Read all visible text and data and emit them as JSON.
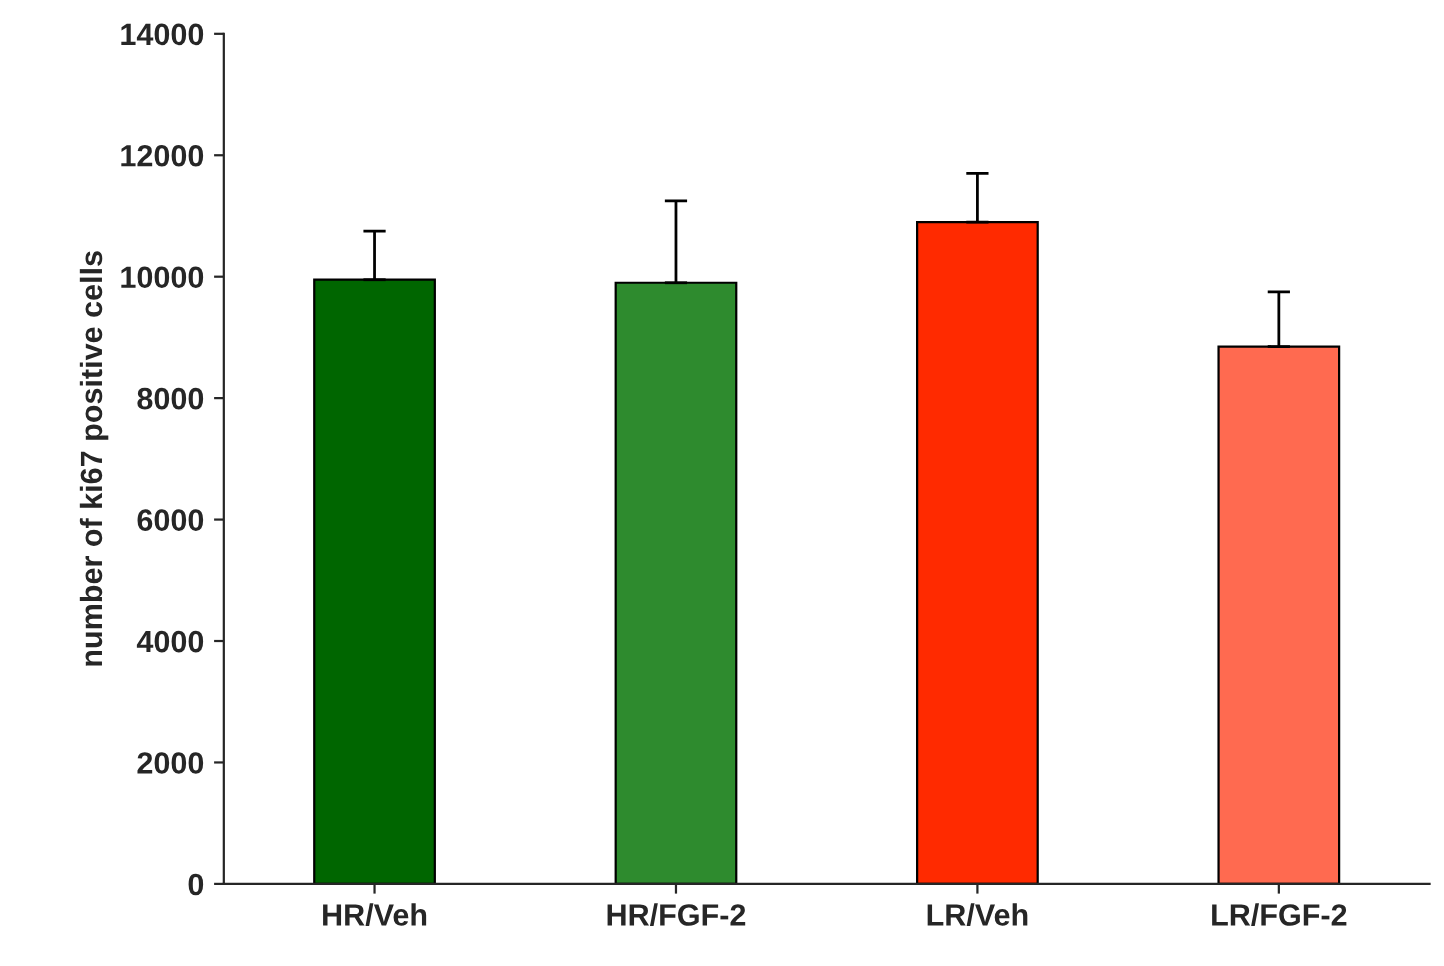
{
  "chart_data": {
    "type": "bar",
    "ylabel": "number of ki67 positive cells",
    "categories": [
      "HR/Veh",
      "HR/FGF-2",
      "LR/Veh",
      "LR/FGF-2"
    ],
    "values": [
      9950,
      9900,
      10900,
      8850
    ],
    "errors": [
      [
        9950,
        10750
      ],
      [
        9900,
        11250
      ],
      [
        10900,
        11700
      ],
      [
        8850,
        9750
      ]
    ],
    "colors": [
      "#006600",
      "#2e8b2e",
      "#ff2a00",
      "#ff6a50"
    ],
    "ylim": [
      0,
      14000
    ],
    "yticks": [
      0,
      2000,
      4000,
      6000,
      8000,
      10000,
      12000,
      14000
    ],
    "grid": false,
    "legend": false
  }
}
